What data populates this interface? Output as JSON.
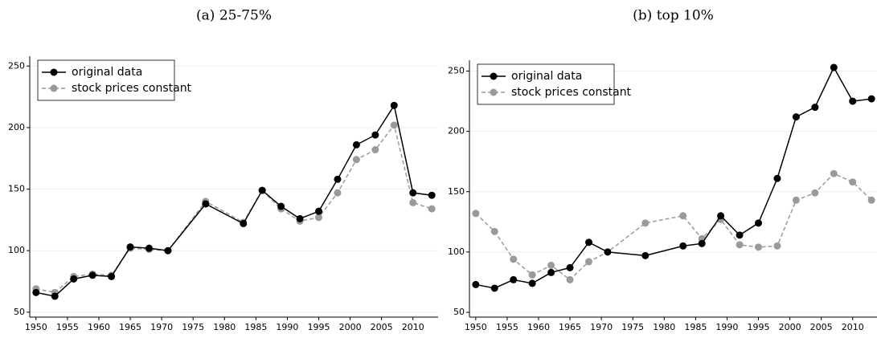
{
  "chart_data": [
    {
      "type": "line",
      "title": "(a) 25-75%",
      "x": [
        1950,
        1953,
        1956,
        1959,
        1962,
        1965,
        1968,
        1971,
        1977,
        1983,
        1986,
        1989,
        1992,
        1995,
        1998,
        2001,
        2004,
        2007,
        2010,
        2013
      ],
      "series": [
        {
          "name": "original data",
          "color": "#000000",
          "linestyle": "solid",
          "values": [
            66,
            63,
            77,
            80,
            79,
            103,
            102,
            100,
            138,
            122,
            149,
            136,
            126,
            132,
            158,
            186,
            194,
            218,
            147,
            145
          ]
        },
        {
          "name": "stock prices constant",
          "color": "#9a9a9a",
          "linestyle": "dashed",
          "values": [
            69,
            66,
            79,
            81,
            80,
            102,
            101,
            100,
            140,
            123,
            149,
            134,
            124,
            127,
            147,
            174,
            182,
            202,
            139,
            134
          ]
        }
      ],
      "xlim": [
        1949,
        2014
      ],
      "xticks": [
        1950,
        1955,
        1960,
        1965,
        1970,
        1975,
        1980,
        1985,
        1990,
        1995,
        2000,
        2005,
        2010
      ],
      "ylim": [
        46,
        258
      ],
      "yticks": [
        50,
        100,
        150,
        200,
        250
      ],
      "grid": true,
      "legend": "upper left"
    },
    {
      "type": "line",
      "title": "(b) top 10%",
      "x": [
        1950,
        1953,
        1956,
        1959,
        1962,
        1965,
        1968,
        1971,
        1977,
        1983,
        1986,
        1989,
        1992,
        1995,
        1998,
        2001,
        2004,
        2007,
        2010,
        2013
      ],
      "series": [
        {
          "name": "original data",
          "color": "#000000",
          "linestyle": "solid",
          "values": [
            73,
            70,
            77,
            74,
            83,
            87,
            108,
            100,
            97,
            105,
            107,
            130,
            114,
            124,
            161,
            212,
            220,
            253,
            225,
            227
          ]
        },
        {
          "name": "stock prices constant",
          "color": "#9a9a9a",
          "linestyle": "dashed",
          "values": [
            132,
            117,
            94,
            81,
            89,
            77,
            92,
            100,
            124,
            130,
            111,
            127,
            106,
            104,
            105,
            143,
            149,
            165,
            158,
            143
          ]
        }
      ],
      "xlim": [
        1949,
        2014
      ],
      "xticks": [
        1950,
        1955,
        1960,
        1965,
        1970,
        1975,
        1980,
        1985,
        1990,
        1995,
        2000,
        2005,
        2010
      ],
      "ylim": [
        46,
        259
      ],
      "yticks": [
        50,
        100,
        150,
        200,
        250
      ],
      "grid": true,
      "legend": "upper left"
    }
  ]
}
